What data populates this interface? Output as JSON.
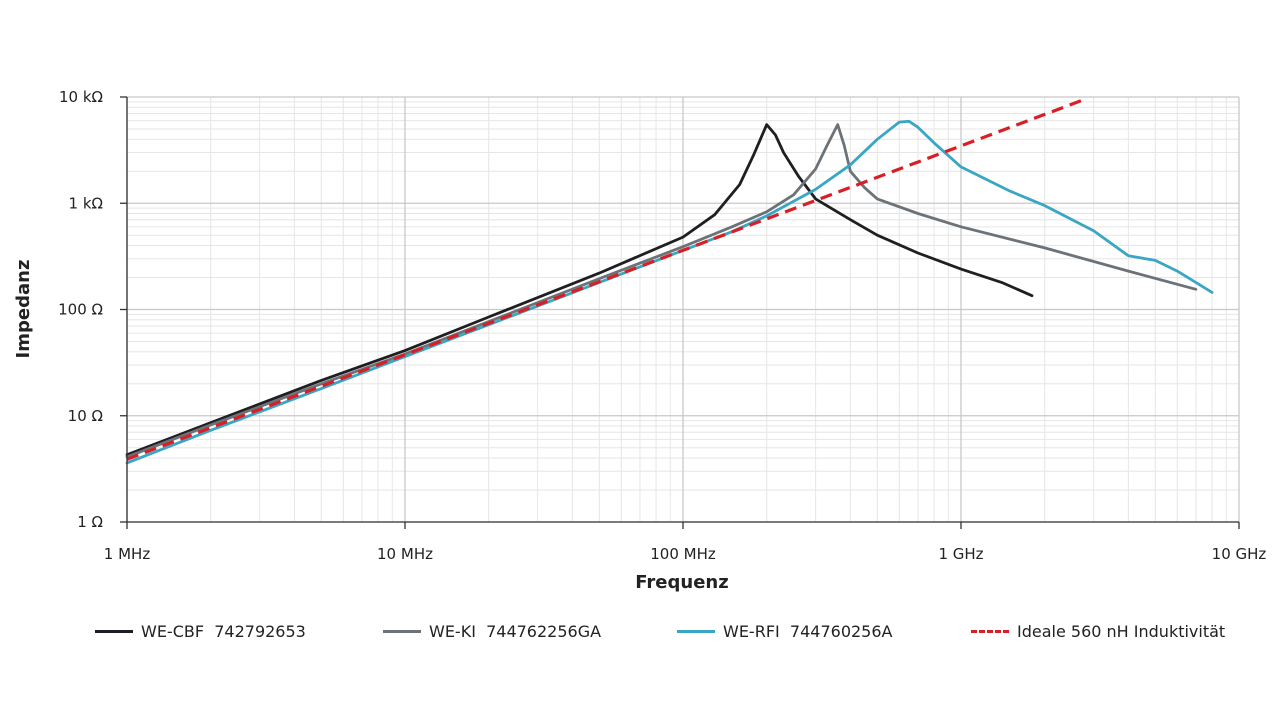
{
  "chart_data": {
    "type": "line",
    "title": "",
    "xlabel": "Frequenz",
    "ylabel": "Impedanz",
    "xscale": "log",
    "yscale": "log",
    "xlim": [
      1,
      10000
    ],
    "ylim": [
      1,
      10000
    ],
    "x_unit": "MHz",
    "y_unit": "Ohm",
    "x_ticks": [
      {
        "value": 1,
        "label": "1 MHz"
      },
      {
        "value": 10,
        "label": "10 MHz"
      },
      {
        "value": 100,
        "label": "100 MHz"
      },
      {
        "value": 1000,
        "label": "1 GHz"
      },
      {
        "value": 10000,
        "label": "10 GHz"
      }
    ],
    "y_ticks": [
      {
        "value": 1,
        "label": "1 Ω"
      },
      {
        "value": 10,
        "label": "10 Ω"
      },
      {
        "value": 100,
        "label": "100 Ω"
      },
      {
        "value": 1000,
        "label": "1 kΩ"
      },
      {
        "value": 10000,
        "label": "10 kΩ"
      }
    ],
    "grid": true,
    "legend_position": "bottom",
    "series": [
      {
        "name": "WE-CBF 742792653",
        "label": "WE-CBF  742792653",
        "color": "#1f1f23",
        "style": "solid",
        "x": [
          1,
          2,
          5,
          10,
          20,
          50,
          100,
          130,
          160,
          180,
          200,
          215,
          230,
          260,
          300,
          400,
          500,
          700,
          1000,
          1400,
          1800
        ],
        "y": [
          4.3,
          8.6,
          21.5,
          41,
          85,
          220,
          480,
          780,
          1500,
          2900,
          5500,
          4400,
          3000,
          1800,
          1100,
          700,
          500,
          340,
          240,
          180,
          135
        ]
      },
      {
        "name": "WE-KI 744762256GA",
        "label": "WE-KI  744762256GA",
        "color": "#6c7378",
        "style": "solid",
        "x": [
          1,
          2,
          5,
          10,
          20,
          50,
          100,
          150,
          200,
          250,
          300,
          330,
          360,
          380,
          400,
          450,
          500,
          700,
          1000,
          2000,
          4000,
          7000
        ],
        "y": [
          4.1,
          8.2,
          20,
          38,
          77,
          195,
          390,
          600,
          830,
          1200,
          2100,
          3500,
          5500,
          3500,
          2000,
          1400,
          1100,
          800,
          600,
          380,
          230,
          155
        ]
      },
      {
        "name": "WE-RFI 744760256A",
        "label": "WE-RFI  744760256A",
        "color": "#3aa6c4",
        "style": "solid",
        "x": [
          1,
          2,
          5,
          10,
          20,
          50,
          100,
          150,
          200,
          300,
          400,
          500,
          600,
          650,
          700,
          800,
          1000,
          1500,
          2000,
          3000,
          4000,
          5000,
          6000,
          8000
        ],
        "y": [
          3.6,
          7.3,
          18,
          36,
          72,
          180,
          360,
          540,
          760,
          1350,
          2300,
          4000,
          5800,
          5900,
          5200,
          3700,
          2200,
          1300,
          950,
          550,
          320,
          290,
          230,
          145
        ]
      },
      {
        "name": "Ideale 560 nH Induktivität",
        "label": "Ideale 560 nH Induktivität",
        "color": "#d81f26",
        "style": "dashed",
        "x": [
          1,
          2700
        ],
        "y": [
          3.9,
          9200
        ]
      }
    ]
  }
}
